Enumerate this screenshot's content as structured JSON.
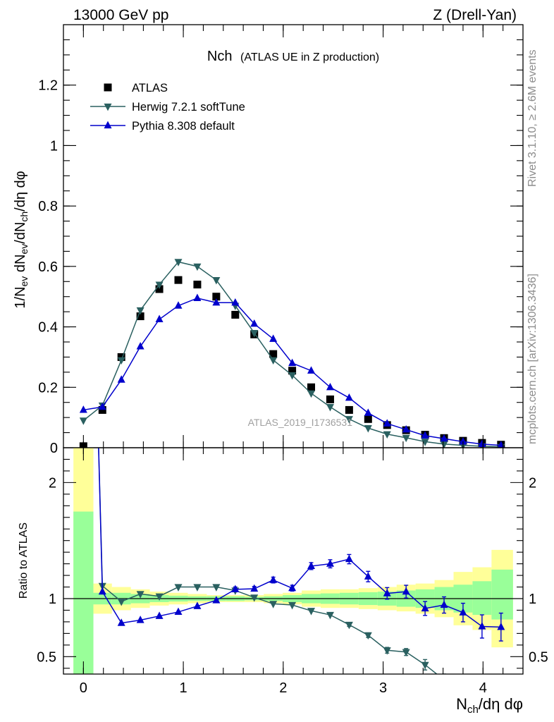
{
  "header": {
    "left": "13000 GeV pp",
    "right": "Z (Drell-Yan)"
  },
  "side_text": {
    "rivet": "Rivet 3.1.10, ≥ 2.6M events",
    "mcplots": "mcplots.cern.ch [arXiv:1306.3436]"
  },
  "chart_data": [
    {
      "type": "scatter",
      "title_main": "Nch",
      "title_sub": "(ATLAS UE in Z production)",
      "ylabel": "1/N_ev dN_ev/dN_ch/dη dφ",
      "watermark": "ATLAS_2019_I1736531",
      "xlim": [
        -0.2,
        4.4
      ],
      "ylim": [
        0,
        1.4
      ],
      "yticks": [
        0,
        0.2,
        0.4,
        0.6,
        0.8,
        1,
        1.2
      ],
      "ytick_labels": [
        "0",
        "0.2",
        "0.4",
        "0.6",
        "0.8",
        "1",
        "1.2"
      ],
      "legend_position": "top-left",
      "x": [
        0,
        0.19,
        0.38,
        0.57,
        0.76,
        0.95,
        1.14,
        1.33,
        1.52,
        1.71,
        1.9,
        2.09,
        2.28,
        2.47,
        2.66,
        2.85,
        3.04,
        3.23,
        3.42,
        3.61,
        3.8,
        3.99,
        4.18
      ],
      "series": [
        {
          "name": "ATLAS",
          "marker": "square",
          "color": "#000000",
          "values": [
            0.005,
            0.125,
            0.3,
            0.435,
            0.525,
            0.555,
            0.54,
            0.5,
            0.44,
            0.375,
            0.31,
            0.255,
            0.2,
            0.16,
            0.125,
            0.095,
            0.075,
            0.058,
            0.043,
            0.032,
            0.023,
            0.016,
            0.01
          ]
        },
        {
          "name": "Herwig 7.2.1 softTune",
          "marker": "triangle-down",
          "color": "#2a6060",
          "values": [
            0.09,
            0.14,
            0.29,
            0.455,
            0.54,
            0.615,
            0.6,
            0.555,
            0.47,
            0.38,
            0.29,
            0.24,
            0.18,
            0.135,
            0.095,
            0.065,
            0.045,
            0.033,
            0.02,
            0.012,
            0.008,
            0.005,
            0.003
          ]
        },
        {
          "name": "Pythia 8.308 default",
          "marker": "triangle-up",
          "color": "#0000cc",
          "values": [
            0.125,
            0.135,
            0.225,
            0.335,
            0.425,
            0.47,
            0.495,
            0.48,
            0.48,
            0.41,
            0.36,
            0.28,
            0.255,
            0.2,
            0.165,
            0.115,
            0.08,
            0.06,
            0.04,
            0.03,
            0.02,
            0.012,
            0.008
          ]
        }
      ]
    },
    {
      "type": "scatter",
      "ylabel": "Ratio to ATLAS",
      "xlabel": "N_ch/dη dφ",
      "xlim": [
        -0.2,
        4.4
      ],
      "ylim": [
        0.35,
        2.3
      ],
      "xticks": [
        0,
        1,
        2,
        3,
        4
      ],
      "xtick_labels": [
        "0",
        "1",
        "2",
        "3",
        "4"
      ],
      "yticks": [
        0.5,
        1,
        2
      ],
      "ytick_labels": [
        "0.5",
        "1",
        "2"
      ],
      "reference_line": 1,
      "bin_edges": [
        -0.1,
        0.1,
        0.285,
        0.475,
        0.665,
        0.855,
        1.045,
        1.235,
        1.425,
        1.615,
        1.805,
        1.995,
        2.185,
        2.375,
        2.565,
        2.755,
        2.945,
        3.135,
        3.325,
        3.515,
        3.705,
        3.895,
        4.085,
        4.3
      ],
      "band_stat_low": [
        0.35,
        0.95,
        0.95,
        0.96,
        0.97,
        0.975,
        0.98,
        0.98,
        0.98,
        0.985,
        0.98,
        0.97,
        0.96,
        0.955,
        0.95,
        0.945,
        0.94,
        0.93,
        0.92,
        0.9,
        0.88,
        0.86,
        0.82
      ],
      "band_stat_high": [
        1.75,
        1.05,
        1.05,
        1.04,
        1.03,
        1.025,
        1.02,
        1.02,
        1.02,
        1.015,
        1.02,
        1.03,
        1.04,
        1.045,
        1.05,
        1.055,
        1.06,
        1.07,
        1.08,
        1.1,
        1.12,
        1.15,
        1.25
      ],
      "band_sys_low": [
        0.35,
        0.87,
        0.9,
        0.92,
        0.94,
        0.95,
        0.96,
        0.97,
        0.97,
        0.97,
        0.96,
        0.95,
        0.93,
        0.92,
        0.92,
        0.91,
        0.9,
        0.89,
        0.87,
        0.84,
        0.77,
        0.73,
        0.58
      ],
      "band_sys_high": [
        2.3,
        1.13,
        1.1,
        1.08,
        1.06,
        1.05,
        1.04,
        1.03,
        1.03,
        1.03,
        1.04,
        1.05,
        1.07,
        1.08,
        1.08,
        1.09,
        1.1,
        1.12,
        1.13,
        1.16,
        1.23,
        1.27,
        1.42
      ],
      "band_stat_color": "#99ff99",
      "band_sys_color": "#ffff99",
      "x": [
        0.19,
        0.38,
        0.57,
        0.76,
        0.95,
        1.14,
        1.33,
        1.52,
        1.71,
        1.9,
        2.09,
        2.28,
        2.47,
        2.66,
        2.85,
        3.04,
        3.23,
        3.42,
        3.61,
        3.8,
        3.99,
        4.18
      ],
      "series": [
        {
          "name": "Herwig 7.2.1 softTune",
          "color": "#2a6060",
          "marker": "triangle-down",
          "values": [
            1.11,
            0.975,
            1.04,
            1.02,
            1.1,
            1.1,
            1.1,
            1.07,
            1.01,
            0.955,
            0.945,
            0.895,
            0.86,
            0.775,
            0.685,
            0.555,
            0.54,
            0.43,
            0.3
          ],
          "errors": [
            0.01,
            0.01,
            0.01,
            0.01,
            0.01,
            0.01,
            0.01,
            0.01,
            0.01,
            0.01,
            0.01,
            0.01,
            0.012,
            0.015,
            0.02,
            0.025,
            0.03,
            0.045,
            0.05
          ]
        },
        {
          "name": "Pythia 8.308 default",
          "color": "#0000cc",
          "marker": "triangle-up",
          "values": [
            1.06,
            0.79,
            0.815,
            0.85,
            0.885,
            0.935,
            0.985,
            1.08,
            1.085,
            1.16,
            1.09,
            1.28,
            1.3,
            1.34,
            1.19,
            1.045,
            1.06,
            0.915,
            0.945,
            0.88,
            0.76,
            0.755
          ],
          "errors": [
            0.01,
            0.01,
            0.01,
            0.01,
            0.01,
            0.01,
            0.01,
            0.02,
            0.02,
            0.025,
            0.025,
            0.03,
            0.035,
            0.04,
            0.045,
            0.05,
            0.055,
            0.06,
            0.07,
            0.08,
            0.1,
            0.12
          ]
        }
      ]
    }
  ]
}
